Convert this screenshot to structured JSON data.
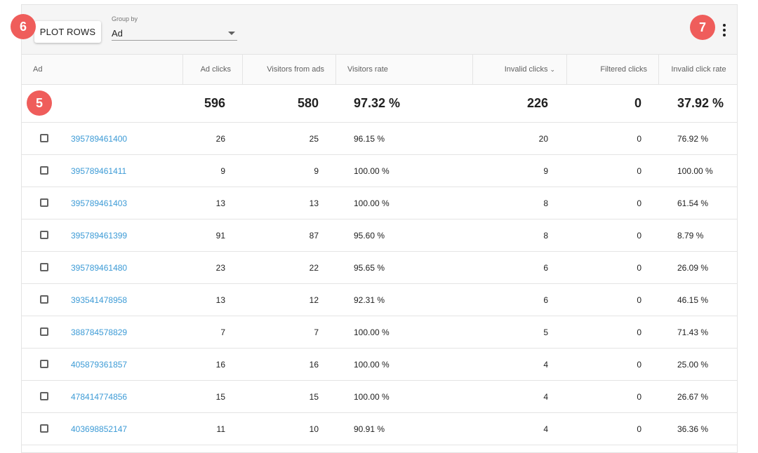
{
  "toolbar": {
    "plot_rows_label": "PLOT ROWS",
    "group_by_label": "Group by",
    "group_by_value": "Ad",
    "more_menu_icon": "more-vert-icon"
  },
  "badges": [
    "6",
    "7",
    "5"
  ],
  "columns": [
    {
      "label": "Ad"
    },
    {
      "label": "Ad clicks"
    },
    {
      "label": "Visitors from ads"
    },
    {
      "label": "Visitors rate"
    },
    {
      "label": "Invalid clicks",
      "sort_icon": "chevron-down-icon"
    },
    {
      "label": "Filtered clicks"
    },
    {
      "label": "Invalid click rate"
    }
  ],
  "totals": {
    "ad_clicks": "596",
    "visitors_from_ads": "580",
    "visitors_rate": "97.32 %",
    "invalid_clicks": "226",
    "filtered_clicks": "0",
    "invalid_click_rate": "37.92 %"
  },
  "rows": [
    {
      "ad": "395789461400",
      "ad_clicks": "26",
      "visitors": "25",
      "visitors_rate": "96.15 %",
      "invalid": "20",
      "filtered": "0",
      "invalid_rate": "76.92 %"
    },
    {
      "ad": "395789461411",
      "ad_clicks": "9",
      "visitors": "9",
      "visitors_rate": "100.00 %",
      "invalid": "9",
      "filtered": "0",
      "invalid_rate": "100.00 %"
    },
    {
      "ad": "395789461403",
      "ad_clicks": "13",
      "visitors": "13",
      "visitors_rate": "100.00 %",
      "invalid": "8",
      "filtered": "0",
      "invalid_rate": "61.54 %"
    },
    {
      "ad": "395789461399",
      "ad_clicks": "91",
      "visitors": "87",
      "visitors_rate": "95.60 %",
      "invalid": "8",
      "filtered": "0",
      "invalid_rate": "8.79 %"
    },
    {
      "ad": "395789461480",
      "ad_clicks": "23",
      "visitors": "22",
      "visitors_rate": "95.65 %",
      "invalid": "6",
      "filtered": "0",
      "invalid_rate": "26.09 %"
    },
    {
      "ad": "393541478958",
      "ad_clicks": "13",
      "visitors": "12",
      "visitors_rate": "92.31 %",
      "invalid": "6",
      "filtered": "0",
      "invalid_rate": "46.15 %"
    },
    {
      "ad": "388784578829",
      "ad_clicks": "7",
      "visitors": "7",
      "visitors_rate": "100.00 %",
      "invalid": "5",
      "filtered": "0",
      "invalid_rate": "71.43 %"
    },
    {
      "ad": "405879361857",
      "ad_clicks": "16",
      "visitors": "16",
      "visitors_rate": "100.00 %",
      "invalid": "4",
      "filtered": "0",
      "invalid_rate": "25.00 %"
    },
    {
      "ad": "478414774856",
      "ad_clicks": "15",
      "visitors": "15",
      "visitors_rate": "100.00 %",
      "invalid": "4",
      "filtered": "0",
      "invalid_rate": "26.67 %"
    },
    {
      "ad": "403698852147",
      "ad_clicks": "11",
      "visitors": "10",
      "visitors_rate": "90.91 %",
      "invalid": "4",
      "filtered": "0",
      "invalid_rate": "36.36 %"
    }
  ],
  "colors": {
    "accent_link": "#3d9bd6",
    "badge": "#ef5d5b"
  }
}
